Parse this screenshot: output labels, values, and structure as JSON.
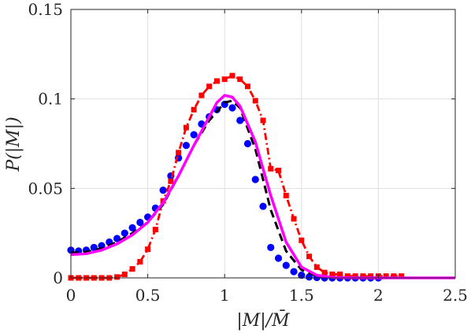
{
  "chart_data": {
    "type": "line",
    "title": "",
    "xlabel": "|M|/M̄",
    "ylabel": "P(|M|)",
    "xlim": [
      0,
      2.5
    ],
    "ylim": [
      0,
      0.15
    ],
    "xticks": [
      0,
      0.5,
      1,
      1.5,
      2,
      2.5
    ],
    "xtick_labels": [
      "0",
      "0.5",
      "1",
      "1.5",
      "2",
      "2.5"
    ],
    "yticks": [
      0,
      0.05,
      0.1,
      0.15
    ],
    "ytick_labels": [
      "0",
      "0.05",
      "0.1",
      "0.15"
    ],
    "grid": true,
    "series": [
      {
        "style": "points",
        "color": "#0000ff",
        "marker": "circle",
        "x": [
          0.0,
          0.05,
          0.1,
          0.15,
          0.2,
          0.25,
          0.3,
          0.35,
          0.4,
          0.45,
          0.5,
          0.55,
          0.6,
          0.65,
          0.7,
          0.75,
          0.8,
          0.85,
          0.9,
          0.95,
          1.0,
          1.05,
          1.1,
          1.15,
          1.2,
          1.25,
          1.3,
          1.35,
          1.4,
          1.45,
          1.5,
          1.55,
          1.6,
          1.65,
          1.7,
          1.75,
          1.8,
          1.85,
          1.9,
          1.95,
          2.0
        ],
        "y": [
          0.0155,
          0.015,
          0.0155,
          0.017,
          0.018,
          0.02,
          0.022,
          0.025,
          0.028,
          0.031,
          0.034,
          0.039,
          0.049,
          0.057,
          0.067,
          0.074,
          0.08,
          0.086,
          0.09,
          0.094,
          0.097,
          0.095,
          0.088,
          0.075,
          0.055,
          0.04,
          0.017,
          0.011,
          0.007,
          0.0035,
          0.0015,
          0.0005,
          0.0002,
          0,
          0,
          0,
          0,
          0,
          0,
          0,
          0
        ]
      },
      {
        "style": "dash-dot",
        "color": "#ff0000",
        "marker": "square",
        "x": [
          0.0,
          0.05,
          0.1,
          0.15,
          0.2,
          0.25,
          0.3,
          0.35,
          0.4,
          0.45,
          0.5,
          0.55,
          0.6,
          0.65,
          0.7,
          0.75,
          0.8,
          0.85,
          0.9,
          0.95,
          1.0,
          1.05,
          1.1,
          1.15,
          1.2,
          1.25,
          1.3,
          1.35,
          1.4,
          1.45,
          1.5,
          1.55,
          1.6,
          1.65,
          1.7,
          1.75,
          1.8,
          1.85,
          1.9,
          1.95,
          2.0,
          2.05,
          2.1,
          2.15
        ],
        "y": [
          0,
          0,
          0,
          0,
          0,
          0,
          0.0005,
          0.002,
          0.005,
          0.009,
          0.016,
          0.027,
          0.043,
          0.054,
          0.07,
          0.084,
          0.094,
          0.102,
          0.107,
          0.11,
          0.111,
          0.113,
          0.111,
          0.107,
          0.099,
          0.088,
          0.061,
          0.06,
          0.046,
          0.033,
          0.021,
          0.012,
          0.006,
          0.003,
          0.002,
          0.002,
          0.001,
          0.001,
          0.001,
          0.001,
          0.001,
          0.001,
          0.001,
          0.001
        ]
      },
      {
        "style": "dashed",
        "color": "#000000",
        "x": [
          0.0,
          0.1,
          0.2,
          0.3,
          0.4,
          0.5,
          0.6,
          0.7,
          0.8,
          0.9,
          1.0,
          1.05,
          1.1,
          1.2,
          1.3,
          1.4,
          1.5,
          1.6,
          1.7,
          1.8,
          1.9,
          2.0,
          2.2,
          2.5
        ],
        "y": [
          0.014,
          0.0145,
          0.0165,
          0.02,
          0.025,
          0.031,
          0.041,
          0.057,
          0.074,
          0.088,
          0.098,
          0.099,
          0.095,
          0.072,
          0.038,
          0.015,
          0.0045,
          0.001,
          0.0002,
          0,
          0,
          0,
          0,
          0
        ]
      },
      {
        "style": "solid",
        "color": "#ff00ff",
        "x": [
          0.0,
          0.1,
          0.2,
          0.3,
          0.4,
          0.5,
          0.6,
          0.7,
          0.8,
          0.9,
          0.95,
          1.0,
          1.05,
          1.1,
          1.2,
          1.3,
          1.4,
          1.5,
          1.6,
          1.7,
          1.8,
          1.9,
          2.0,
          2.2,
          2.5
        ],
        "y": [
          0.013,
          0.0135,
          0.0155,
          0.019,
          0.024,
          0.031,
          0.042,
          0.057,
          0.074,
          0.09,
          0.098,
          0.102,
          0.101,
          0.096,
          0.076,
          0.046,
          0.02,
          0.006,
          0.0015,
          0.0003,
          0.0001,
          0,
          0,
          0,
          0
        ]
      }
    ]
  }
}
